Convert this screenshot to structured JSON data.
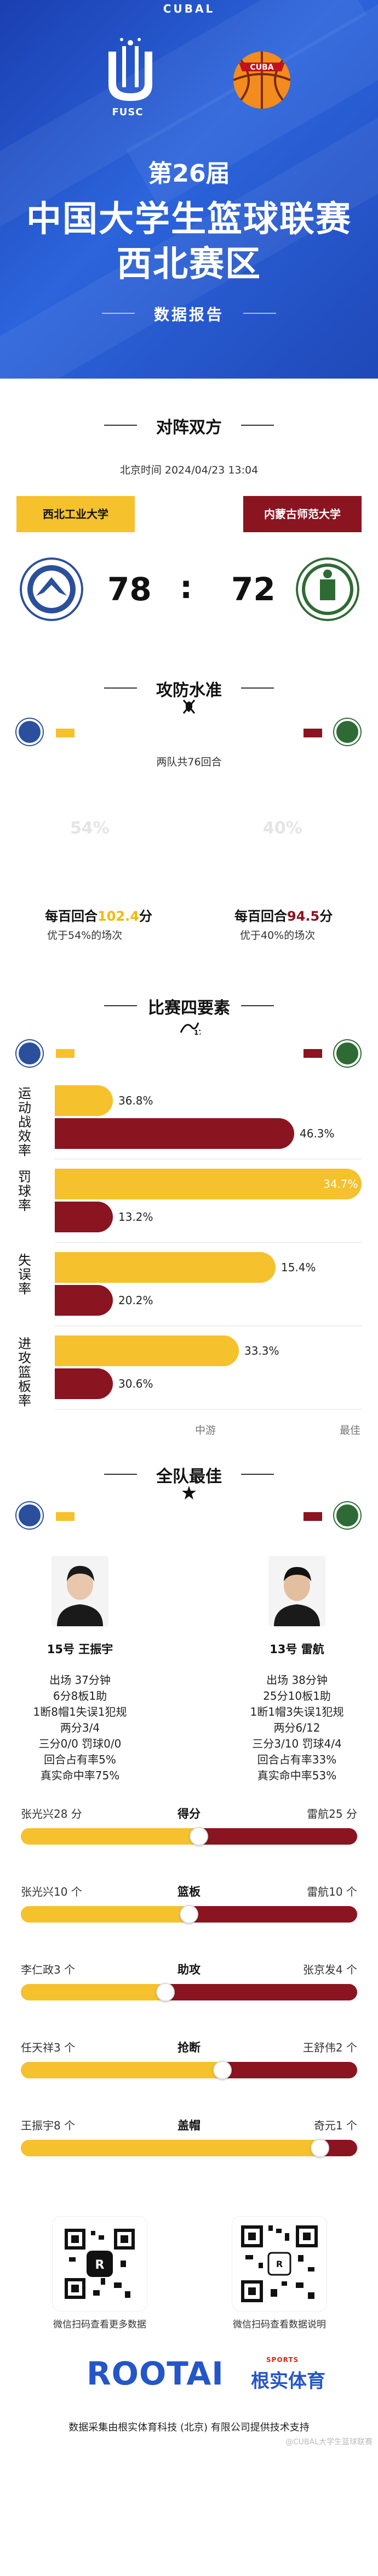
{
  "header": {
    "brand": "CUBAL",
    "fusc_label": "FUSC",
    "edition": "第26届",
    "title_line1": "中国大学生篮球联赛",
    "title_line2": "西北赛区",
    "subtitle": "数据报告"
  },
  "matchup": {
    "section_title": "对阵双方",
    "time_text": "北京时间 2024/04/23 13:04",
    "left_team": "西北工业大学",
    "right_team": "内蒙古师范大学",
    "left_score": "78",
    "separator": ":",
    "right_score": "72"
  },
  "offense": {
    "section_title": "攻防水准",
    "both_text": "两队共76回合",
    "left_pct": "54%",
    "right_pct": "40%",
    "left_per100_prefix": "每百回合",
    "left_per100_value": "102.4",
    "left_per100_suffix": "分",
    "right_per100_prefix": "每百回合",
    "right_per100_value": "94.5",
    "right_per100_suffix": "分",
    "left_better": "优于54%的场次",
    "right_better": "优于40%的场次"
  },
  "four_factors": {
    "section_title": "比赛四要素",
    "axis_mid": "中游",
    "axis_best": "最佳",
    "factors": [
      {
        "label": "运动战效率",
        "left": "36.8%",
        "right": "46.3%",
        "left_level": 0.19,
        "right_level": 0.78
      },
      {
        "label": "罚球率",
        "left": "34.7%",
        "right": "13.2%",
        "left_level": 1.0,
        "right_level": 0.19
      },
      {
        "label": "失误率",
        "left": "15.4%",
        "right": "20.2%",
        "left_level": 0.72,
        "right_level": 0.19
      },
      {
        "label": "进攻篮板率",
        "left": "33.3%",
        "right": "30.6%",
        "left_level": 0.6,
        "right_level": 0.19
      }
    ]
  },
  "best": {
    "section_title": "全队最佳",
    "left_player": "15号 王振宇",
    "right_player": "13号 雷航",
    "left_stats": [
      "出场 37分钟",
      "6分8板1助",
      "1断8帽1失误1犯规",
      "两分3/4",
      "三分0/0 罚球0/0",
      "回合占有率5%",
      "真实命中率75%"
    ],
    "right_stats": [
      "出场 38分钟",
      "25分10板1助",
      "1断1帽3失误1犯规",
      "两分6/12",
      "三分3/10 罚球4/4",
      "回合占有率33%",
      "真实命中率53%"
    ]
  },
  "leaders": [
    {
      "left": "张光兴28 分",
      "label": "得分",
      "right": "雷航25 分",
      "left_share": 0.53
    },
    {
      "left": "张光兴10 个",
      "label": "篮板",
      "right": "雷航10 个",
      "left_share": 0.5
    },
    {
      "left": "李仁政3 个",
      "label": "助攻",
      "right": "张京发4 个",
      "left_share": 0.43
    },
    {
      "left": "任天祥3 个",
      "label": "抢断",
      "right": "王舒伟2 个",
      "left_share": 0.6
    },
    {
      "left": "王振宇8 个",
      "label": "盖帽",
      "right": "奇元1 个",
      "left_share": 0.89
    }
  ],
  "qr": {
    "left_caption": "微信扫码查看更多数据",
    "right_caption": "微信扫码查看数据说明"
  },
  "footer": {
    "brand": "ROOTAI",
    "brand_cn": "根实体育",
    "brand_sports": "SPORTS",
    "credit": "数据采集由根实体育科技 (北京) 有限公司提供技术支持",
    "watermark": "@CUBAL大学生篮球联赛"
  },
  "colors": {
    "yellow": "#f5c12c",
    "red": "#8a1420",
    "blue": "#2456c8"
  }
}
